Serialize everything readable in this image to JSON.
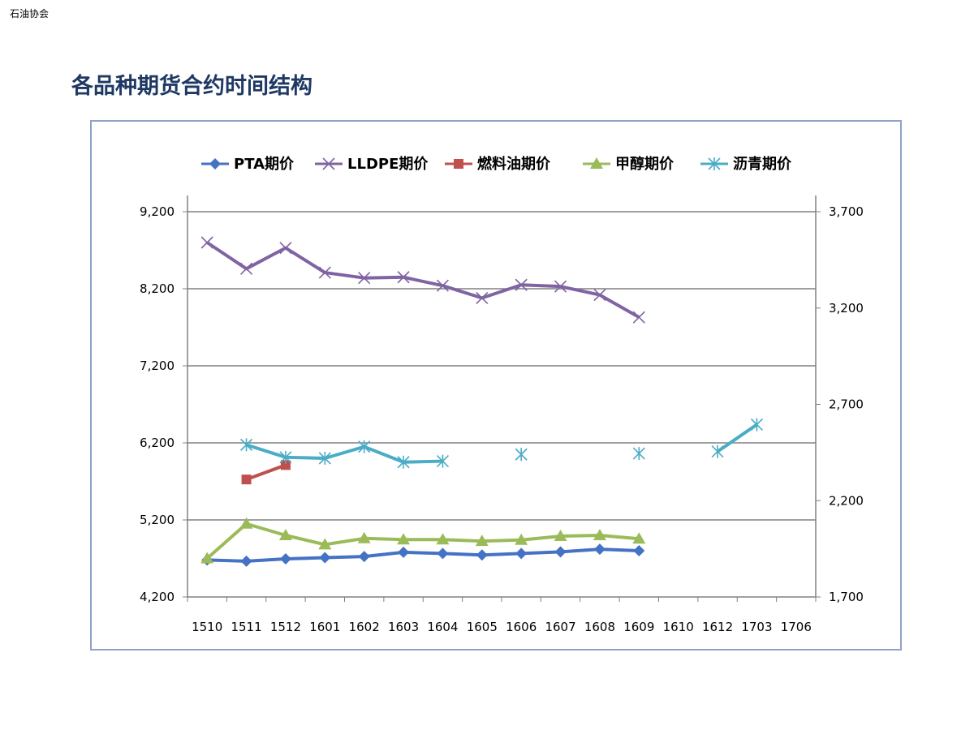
{
  "header": {
    "org": "石油协会",
    "title": "各品种期货合约时间结构"
  },
  "colors": {
    "pta": "#4472c4",
    "lldpe": "#8064a2",
    "fuel": "#c0504d",
    "methanol": "#9bbb59",
    "asphalt": "#4bacc6",
    "grid": "#808080"
  },
  "chart_data": {
    "type": "line",
    "categories": [
      "1510",
      "1511",
      "1512",
      "1601",
      "1602",
      "1603",
      "1604",
      "1605",
      "1606",
      "1607",
      "1608",
      "1609",
      "1610",
      "1612",
      "1703",
      "1706"
    ],
    "y_left": {
      "min": 4200,
      "max": 9200,
      "ticks": [
        "4,200",
        "5,200",
        "6,200",
        "7,200",
        "8,200",
        "9,200"
      ],
      "tick_values": [
        4200,
        5200,
        6200,
        7200,
        8200,
        9200
      ]
    },
    "y_right": {
      "min": 1700,
      "max": 3700,
      "ticks": [
        "1,700",
        "2,200",
        "2,700",
        "3,200",
        "3,700"
      ],
      "tick_values": [
        1700,
        2200,
        2700,
        3200,
        3700
      ]
    },
    "grid": true,
    "legend_position": "top",
    "series": [
      {
        "name": "PTA期价",
        "axis": "left",
        "marker": "diamond",
        "color": "#4472c4",
        "values": [
          4680,
          4665,
          4695,
          4710,
          4725,
          4780,
          4765,
          4745,
          4765,
          4785,
          4820,
          4800,
          null,
          null,
          null,
          null
        ]
      },
      {
        "name": "LLDPE期价",
        "axis": "left",
        "marker": "x",
        "color": "#8064a2",
        "values": [
          8800,
          8460,
          8730,
          8410,
          8340,
          8350,
          8240,
          8080,
          8250,
          8230,
          8120,
          7830,
          null,
          null,
          null,
          null
        ]
      },
      {
        "name": "燃料油期价",
        "axis": "right",
        "marker": "square",
        "color": "#c0504d",
        "values": [
          null,
          2310,
          2385,
          null,
          null,
          null,
          null,
          null,
          null,
          null,
          null,
          null,
          null,
          null,
          null,
          null
        ]
      },
      {
        "name": "甲醇期价",
        "axis": "left",
        "marker": "triangle",
        "color": "#9bbb59",
        "values": [
          4700,
          5150,
          5000,
          4880,
          4960,
          4945,
          4945,
          4925,
          4940,
          4990,
          5000,
          4955,
          null,
          null,
          null,
          null
        ]
      },
      {
        "name": "沥青期价",
        "axis": "right",
        "marker": "asterisk",
        "color": "#4bacc6",
        "values": [
          null,
          2490,
          2425,
          2420,
          2480,
          2400,
          2405,
          null,
          2440,
          null,
          null,
          2445,
          null,
          2455,
          2595,
          null
        ]
      }
    ]
  }
}
